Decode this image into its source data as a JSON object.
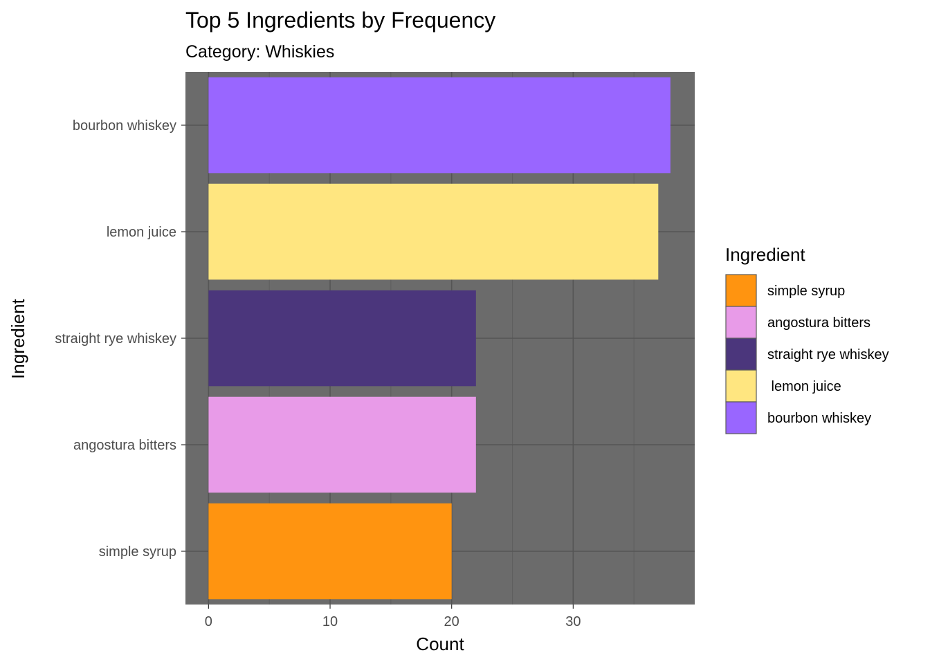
{
  "chart_data": {
    "type": "bar",
    "orientation": "horizontal",
    "title": "Top 5 Ingredients by Frequency",
    "subtitle": "Category: Whiskies",
    "xlabel": "Count",
    "ylabel": "Ingredient",
    "xlim": [
      -1.9,
      40
    ],
    "x_ticks": [
      0,
      10,
      20,
      30
    ],
    "categories": [
      "bourbon whiskey",
      "lemon juice",
      "straight rye whiskey",
      "angostura bitters",
      "simple syrup"
    ],
    "values": [
      38,
      37,
      22,
      22,
      20
    ],
    "colors": [
      "#9966FF",
      "#FFE680",
      "#4B367C",
      "#E89BE8",
      "#FF9410"
    ],
    "grid": true,
    "panel_background": "#6B6B6B",
    "legend": {
      "title": "Ingredient",
      "position": "right",
      "items": [
        {
          "label": "simple syrup",
          "color": "#FF9410"
        },
        {
          "label": "angostura bitters",
          "color": "#E89BE8"
        },
        {
          "label": "straight rye whiskey",
          "color": "#4B367C"
        },
        {
          "label": " lemon juice",
          "color": "#FFE680"
        },
        {
          "label": "bourbon whiskey",
          "color": "#9966FF"
        }
      ]
    }
  }
}
